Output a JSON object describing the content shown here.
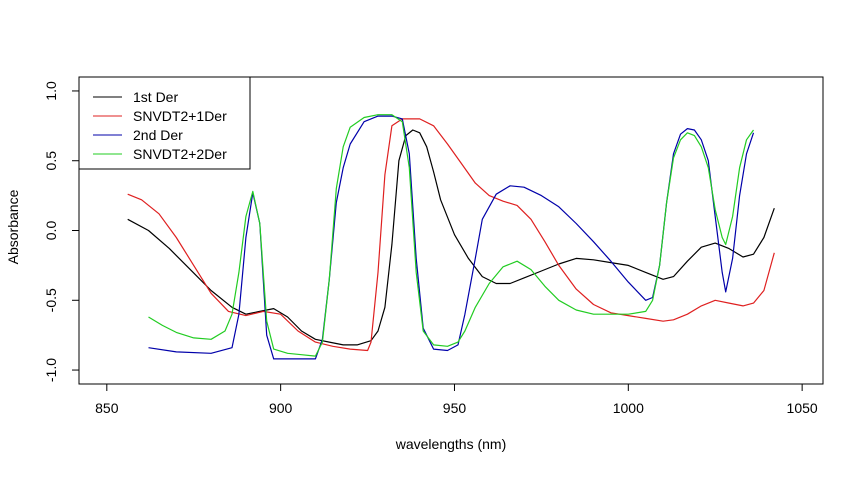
{
  "chart_data": {
    "type": "line",
    "title": "",
    "xlabel": "wavelengths (nm)",
    "ylabel": "Absorbance",
    "xlim": [
      842,
      1056
    ],
    "ylim": [
      -1.1,
      1.1
    ],
    "xticks": [
      850,
      900,
      950,
      1000,
      1050
    ],
    "yticks": [
      -1.0,
      -0.5,
      0.0,
      0.5,
      1.0
    ],
    "ytick_labels": [
      "-1.0",
      "-0.5",
      "0.0",
      "0.5",
      "1.0"
    ],
    "grid": false,
    "legend_position": "top-left",
    "series": [
      {
        "name": "1st Der",
        "color": "#000000",
        "points": [
          [
            856,
            0.08
          ],
          [
            862,
            0.0
          ],
          [
            868,
            -0.13
          ],
          [
            874,
            -0.28
          ],
          [
            880,
            -0.43
          ],
          [
            886,
            -0.55
          ],
          [
            890,
            -0.6
          ],
          [
            894,
            -0.58
          ],
          [
            898,
            -0.56
          ],
          [
            902,
            -0.62
          ],
          [
            906,
            -0.72
          ],
          [
            910,
            -0.78
          ],
          [
            914,
            -0.8
          ],
          [
            918,
            -0.82
          ],
          [
            922,
            -0.82
          ],
          [
            926,
            -0.79
          ],
          [
            928,
            -0.72
          ],
          [
            930,
            -0.55
          ],
          [
            932,
            -0.1
          ],
          [
            934,
            0.5
          ],
          [
            936,
            0.68
          ],
          [
            938,
            0.72
          ],
          [
            940,
            0.7
          ],
          [
            942,
            0.6
          ],
          [
            944,
            0.42
          ],
          [
            946,
            0.22
          ],
          [
            950,
            -0.03
          ],
          [
            954,
            -0.2
          ],
          [
            958,
            -0.33
          ],
          [
            962,
            -0.38
          ],
          [
            966,
            -0.38
          ],
          [
            970,
            -0.34
          ],
          [
            975,
            -0.29
          ],
          [
            980,
            -0.24
          ],
          [
            985,
            -0.2
          ],
          [
            990,
            -0.21
          ],
          [
            995,
            -0.23
          ],
          [
            1000,
            -0.25
          ],
          [
            1005,
            -0.3
          ],
          [
            1010,
            -0.35
          ],
          [
            1013,
            -0.33
          ],
          [
            1017,
            -0.22
          ],
          [
            1021,
            -0.12
          ],
          [
            1025,
            -0.09
          ],
          [
            1029,
            -0.13
          ],
          [
            1033,
            -0.19
          ],
          [
            1036,
            -0.17
          ],
          [
            1039,
            -0.05
          ],
          [
            1042,
            0.16
          ]
        ]
      },
      {
        "name": "SNVDT2+1Der",
        "color": "#df2020",
        "points": [
          [
            856,
            0.26
          ],
          [
            860,
            0.22
          ],
          [
            865,
            0.12
          ],
          [
            870,
            -0.05
          ],
          [
            875,
            -0.25
          ],
          [
            880,
            -0.45
          ],
          [
            885,
            -0.58
          ],
          [
            890,
            -0.61
          ],
          [
            895,
            -0.58
          ],
          [
            900,
            -0.6
          ],
          [
            905,
            -0.72
          ],
          [
            910,
            -0.8
          ],
          [
            915,
            -0.83
          ],
          [
            920,
            -0.85
          ],
          [
            925,
            -0.86
          ],
          [
            926,
            -0.8
          ],
          [
            928,
            -0.3
          ],
          [
            930,
            0.4
          ],
          [
            932,
            0.75
          ],
          [
            935,
            0.8
          ],
          [
            940,
            0.8
          ],
          [
            944,
            0.75
          ],
          [
            948,
            0.62
          ],
          [
            952,
            0.48
          ],
          [
            956,
            0.34
          ],
          [
            960,
            0.25
          ],
          [
            964,
            0.21
          ],
          [
            968,
            0.18
          ],
          [
            972,
            0.08
          ],
          [
            976,
            -0.08
          ],
          [
            980,
            -0.25
          ],
          [
            985,
            -0.42
          ],
          [
            990,
            -0.53
          ],
          [
            995,
            -0.59
          ],
          [
            1000,
            -0.61
          ],
          [
            1005,
            -0.63
          ],
          [
            1010,
            -0.65
          ],
          [
            1013,
            -0.64
          ],
          [
            1017,
            -0.6
          ],
          [
            1021,
            -0.54
          ],
          [
            1025,
            -0.5
          ],
          [
            1029,
            -0.52
          ],
          [
            1033,
            -0.54
          ],
          [
            1036,
            -0.52
          ],
          [
            1039,
            -0.43
          ],
          [
            1042,
            -0.16
          ]
        ]
      },
      {
        "name": "2nd Der",
        "color": "#0000aa",
        "points": [
          [
            862,
            -0.84
          ],
          [
            870,
            -0.87
          ],
          [
            880,
            -0.88
          ],
          [
            886,
            -0.84
          ],
          [
            888,
            -0.6
          ],
          [
            890,
            -0.05
          ],
          [
            892,
            0.27
          ],
          [
            894,
            0.05
          ],
          [
            896,
            -0.75
          ],
          [
            898,
            -0.92
          ],
          [
            902,
            -0.92
          ],
          [
            906,
            -0.92
          ],
          [
            910,
            -0.92
          ],
          [
            912,
            -0.78
          ],
          [
            914,
            -0.35
          ],
          [
            916,
            0.2
          ],
          [
            918,
            0.45
          ],
          [
            920,
            0.62
          ],
          [
            924,
            0.78
          ],
          [
            928,
            0.82
          ],
          [
            932,
            0.82
          ],
          [
            935,
            0.8
          ],
          [
            937,
            0.55
          ],
          [
            939,
            -0.2
          ],
          [
            941,
            -0.7
          ],
          [
            944,
            -0.85
          ],
          [
            948,
            -0.86
          ],
          [
            951,
            -0.82
          ],
          [
            953,
            -0.6
          ],
          [
            956,
            -0.2
          ],
          [
            958,
            0.08
          ],
          [
            962,
            0.26
          ],
          [
            966,
            0.32
          ],
          [
            970,
            0.31
          ],
          [
            975,
            0.25
          ],
          [
            980,
            0.17
          ],
          [
            985,
            0.05
          ],
          [
            990,
            -0.08
          ],
          [
            995,
            -0.22
          ],
          [
            1000,
            -0.37
          ],
          [
            1005,
            -0.5
          ],
          [
            1007,
            -0.48
          ],
          [
            1009,
            -0.25
          ],
          [
            1011,
            0.2
          ],
          [
            1013,
            0.55
          ],
          [
            1015,
            0.69
          ],
          [
            1017,
            0.73
          ],
          [
            1019,
            0.72
          ],
          [
            1021,
            0.65
          ],
          [
            1023,
            0.5
          ],
          [
            1025,
            0.1
          ],
          [
            1027,
            -0.3
          ],
          [
            1028,
            -0.44
          ],
          [
            1030,
            -0.2
          ],
          [
            1032,
            0.25
          ],
          [
            1034,
            0.55
          ],
          [
            1036,
            0.7
          ]
        ]
      },
      {
        "name": "SNVDT2+2Der",
        "color": "#22cc22",
        "points": [
          [
            862,
            -0.62
          ],
          [
            866,
            -0.68
          ],
          [
            870,
            -0.73
          ],
          [
            875,
            -0.77
          ],
          [
            880,
            -0.78
          ],
          [
            884,
            -0.72
          ],
          [
            886,
            -0.6
          ],
          [
            888,
            -0.3
          ],
          [
            890,
            0.1
          ],
          [
            892,
            0.28
          ],
          [
            894,
            0.05
          ],
          [
            896,
            -0.65
          ],
          [
            898,
            -0.85
          ],
          [
            902,
            -0.88
          ],
          [
            906,
            -0.89
          ],
          [
            910,
            -0.9
          ],
          [
            912,
            -0.8
          ],
          [
            914,
            -0.35
          ],
          [
            916,
            0.3
          ],
          [
            918,
            0.6
          ],
          [
            920,
            0.74
          ],
          [
            924,
            0.81
          ],
          [
            928,
            0.83
          ],
          [
            932,
            0.83
          ],
          [
            935,
            0.78
          ],
          [
            937,
            0.45
          ],
          [
            939,
            -0.3
          ],
          [
            941,
            -0.72
          ],
          [
            944,
            -0.82
          ],
          [
            948,
            -0.83
          ],
          [
            951,
            -0.8
          ],
          [
            953,
            -0.72
          ],
          [
            956,
            -0.55
          ],
          [
            960,
            -0.38
          ],
          [
            964,
            -0.26
          ],
          [
            968,
            -0.22
          ],
          [
            972,
            -0.28
          ],
          [
            976,
            -0.4
          ],
          [
            980,
            -0.5
          ],
          [
            985,
            -0.57
          ],
          [
            990,
            -0.6
          ],
          [
            995,
            -0.6
          ],
          [
            1000,
            -0.6
          ],
          [
            1005,
            -0.58
          ],
          [
            1007,
            -0.5
          ],
          [
            1009,
            -0.25
          ],
          [
            1011,
            0.2
          ],
          [
            1013,
            0.52
          ],
          [
            1015,
            0.65
          ],
          [
            1017,
            0.7
          ],
          [
            1019,
            0.68
          ],
          [
            1021,
            0.6
          ],
          [
            1023,
            0.45
          ],
          [
            1025,
            0.15
          ],
          [
            1027,
            -0.05
          ],
          [
            1028,
            -0.1
          ],
          [
            1030,
            0.1
          ],
          [
            1032,
            0.45
          ],
          [
            1034,
            0.65
          ],
          [
            1036,
            0.72
          ]
        ]
      }
    ]
  }
}
